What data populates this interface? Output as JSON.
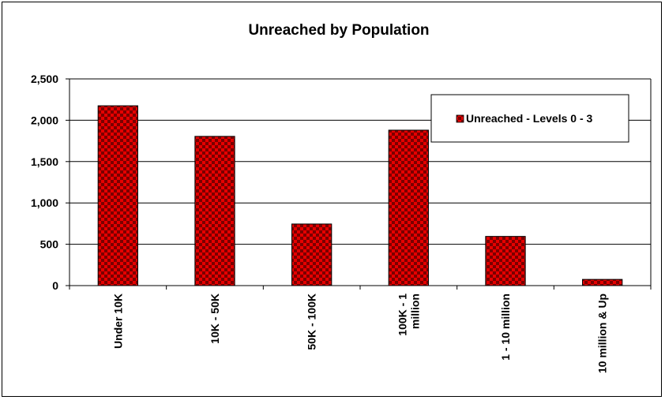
{
  "chart_data": {
    "type": "bar",
    "title": "Unreached by Population",
    "categories": [
      "Under 10K",
      "10K - 50K",
      "50K - 100K",
      "100K - 1 million",
      "1 - 10 million",
      "10 million & Up"
    ],
    "category_lines": [
      [
        "Under 10K"
      ],
      [
        "10K - 50K"
      ],
      [
        "50K - 100K"
      ],
      [
        "100K - 1",
        "million"
      ],
      [
        "1 - 10 million"
      ],
      [
        "10 million & Up"
      ]
    ],
    "series": [
      {
        "name": "Unreached - Levels 0 - 3",
        "values": [
          2175,
          1805,
          745,
          1880,
          595,
          75
        ]
      }
    ],
    "ylim": [
      0,
      2500
    ],
    "yticks": [
      0,
      500,
      1000,
      1500,
      2000,
      2500
    ],
    "ytick_labels": [
      "0",
      "500",
      "1,000",
      "1,500",
      "2,000",
      "2,500"
    ],
    "grid": true,
    "legend_position": "top-right",
    "colors": {
      "bar": "#e60000",
      "bar_check": "#7a0000",
      "grid": "#000000"
    }
  }
}
